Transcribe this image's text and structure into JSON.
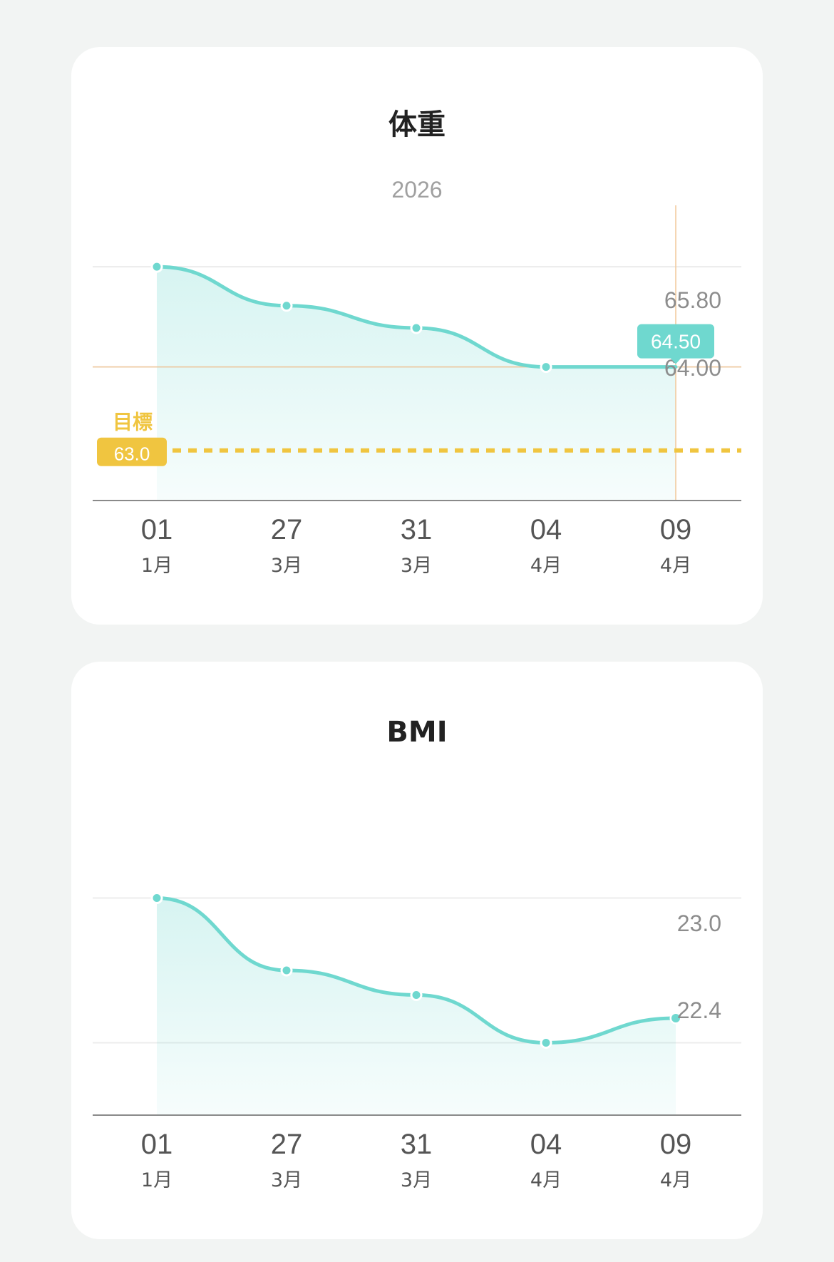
{
  "chart_data": [
    {
      "type": "area",
      "title": "体重",
      "subtitle": "2026",
      "x": [
        {
          "day": "01",
          "month": "1月"
        },
        {
          "day": "27",
          "month": "3月"
        },
        {
          "day": "31",
          "month": "3月"
        },
        {
          "day": "04",
          "month": "4月"
        },
        {
          "day": "09",
          "month": "4月"
        }
      ],
      "values": [
        66.3,
        65.6,
        65.2,
        64.5,
        64.5
      ],
      "gridlines": [
        66.3,
        64.5
      ],
      "ylim": [
        62.1,
        67.3
      ],
      "y_labels": [
        "65.80",
        "64.00"
      ],
      "target": {
        "label": "目標",
        "value": "63.0",
        "y": 63.0
      },
      "selected": {
        "index": 4,
        "value": "64.50"
      },
      "line_color": "#6fd8cf",
      "target_color": "#f0c540",
      "crosshair_color": "#f2c89a"
    },
    {
      "type": "area",
      "title": "BMI",
      "x": [
        {
          "day": "01",
          "month": "1月"
        },
        {
          "day": "27",
          "month": "3月"
        },
        {
          "day": "31",
          "month": "3月"
        },
        {
          "day": "04",
          "month": "4月"
        },
        {
          "day": "09",
          "month": "4月"
        }
      ],
      "values": [
        23.3,
        22.8,
        22.63,
        22.3,
        22.47
      ],
      "gridlines": [
        23.3,
        22.3
      ],
      "ylim": [
        21.8,
        23.8
      ],
      "y_labels": [
        "23.0",
        "22.4"
      ],
      "line_color": "#6fd8cf"
    }
  ]
}
